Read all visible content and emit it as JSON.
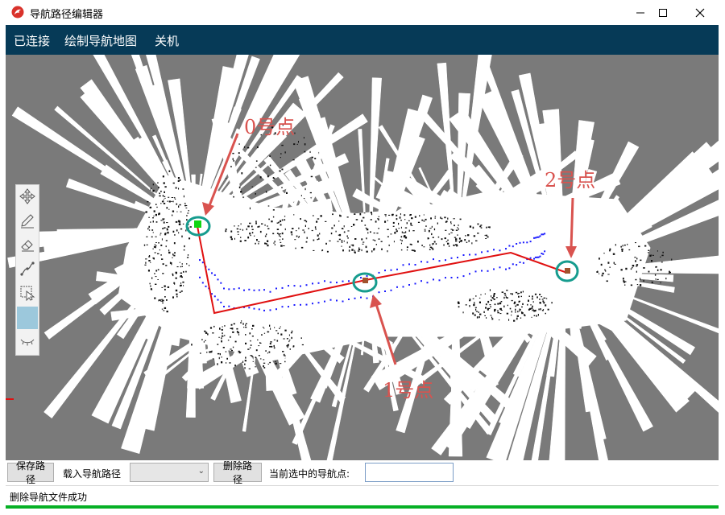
{
  "window": {
    "title": "导航路径编辑器",
    "minimize_icon": "minimize-icon",
    "maximize_icon": "maximize-icon",
    "close_icon": "close-icon"
  },
  "menu": [
    {
      "label": "已连接"
    },
    {
      "label": "绘制导航地图"
    },
    {
      "label": "关机"
    }
  ],
  "tools": [
    {
      "icon": "move-icon"
    },
    {
      "icon": "pencil-icon"
    },
    {
      "icon": "eraser-icon"
    },
    {
      "icon": "path-icon"
    },
    {
      "icon": "select-icon"
    },
    {
      "icon": "blank-icon",
      "active": true
    },
    {
      "icon": "eye-closed-icon"
    }
  ],
  "map": {
    "points": [
      {
        "label": "0号点",
        "color": "#11d611"
      },
      {
        "label": "1号点",
        "color": "#a0522d"
      },
      {
        "label": "2号点",
        "color": "#a0522d"
      }
    ],
    "path_color": "#e01010",
    "marker_ring_color": "#169c8e",
    "trail_color": "#1a1aff"
  },
  "bottom": {
    "save_label": "保存路径",
    "load_label": "载入导航路径",
    "combo_value": "",
    "delete_label": "删除路径",
    "current_label": "当前选中的导航点:",
    "current_value": ""
  },
  "status": {
    "message": "删除导航文件成功",
    "progress": 1.0
  }
}
